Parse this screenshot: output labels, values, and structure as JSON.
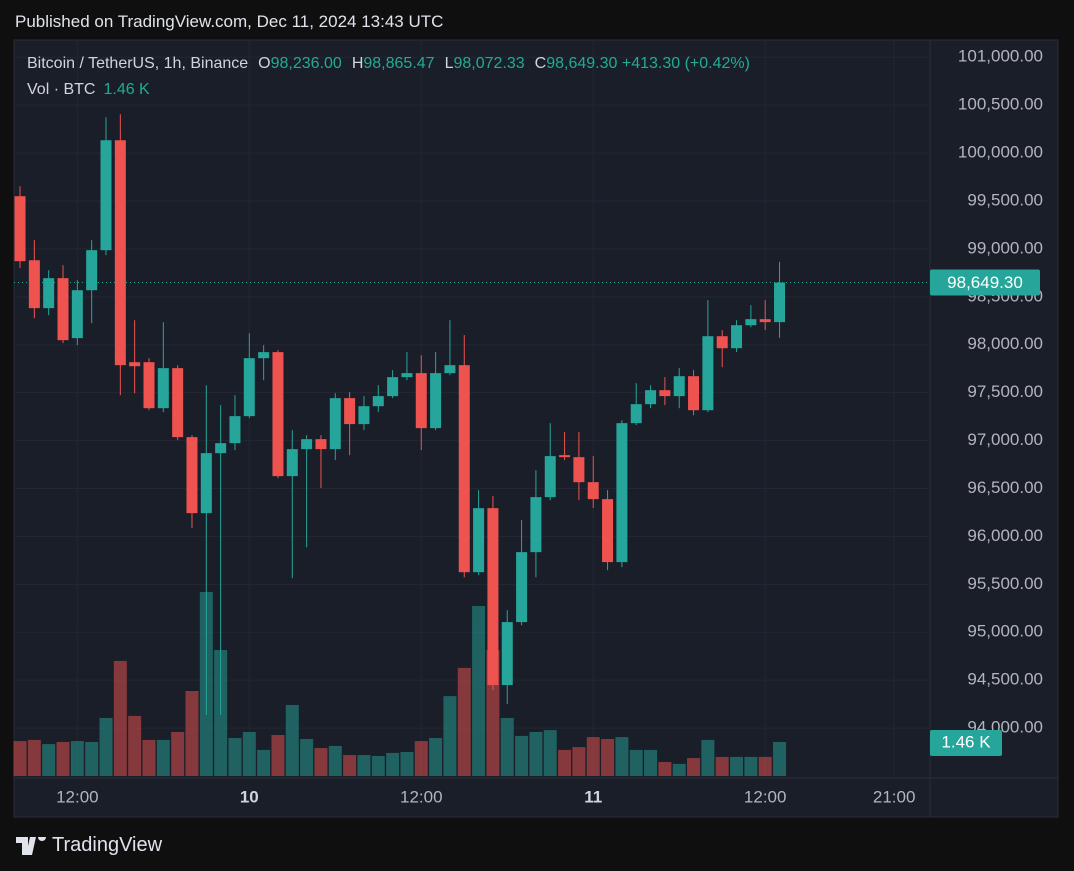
{
  "header": {
    "published": "Published on TradingView.com, Dec 11, 2024 13:43 UTC",
    "brand": "TradingView"
  },
  "chart_data": {
    "type": "candlestick",
    "title": "Bitcoin / TetherUS, 1h, Binance",
    "legend": [
      {
        "key": "O",
        "value": "98,236.00"
      },
      {
        "key": "H",
        "value": "98,865.47"
      },
      {
        "key": "L",
        "value": "98,072.33"
      },
      {
        "key": "C",
        "value": "98,649.30"
      }
    ],
    "change": "+413.30 (+0.42%)",
    "volume_title": "Vol · BTC",
    "volume_label": "1.46 K",
    "last_price_label": "98,649.30",
    "x": [
      0,
      1,
      2,
      3,
      4,
      5,
      6,
      7,
      8,
      9,
      10,
      11,
      12,
      13,
      14,
      15,
      16,
      17,
      18,
      19,
      20,
      21,
      22,
      23,
      24,
      25,
      26,
      27,
      28,
      29,
      30,
      31,
      32,
      33,
      34,
      35,
      36,
      37,
      38,
      39,
      40,
      41,
      42,
      43,
      44,
      45,
      46,
      47,
      48,
      49,
      50,
      51,
      52,
      53
    ],
    "open": [
      99550,
      98882,
      98382,
      98695,
      98069,
      98569,
      98987,
      100134,
      97818,
      97818,
      97338,
      97756,
      97036,
      96243,
      96869,
      96973,
      97255,
      97860,
      97923,
      96629,
      96911,
      97015,
      96911,
      97443,
      97172,
      97359,
      97464,
      97662,
      97704,
      97130,
      97704,
      97787,
      95627,
      96295,
      94449,
      95106,
      95836,
      96410,
      96848,
      96827,
      96566,
      96389,
      95732,
      97182,
      97380,
      97526,
      97464,
      97672,
      97317,
      98089,
      97964,
      98204,
      98267,
      98236
    ],
    "high": [
      99654,
      99091,
      98778,
      98830,
      98674,
      99091,
      100374,
      100405,
      98256,
      97860,
      98235,
      97787,
      97057,
      97578,
      97370,
      97474,
      98121,
      97996,
      97944,
      97109,
      97057,
      97057,
      97495,
      97505,
      97464,
      97578,
      97735,
      97923,
      97891,
      97923,
      98256,
      98100,
      96483,
      96420,
      95230,
      96170,
      96692,
      97182,
      97088,
      97088,
      96838,
      96483,
      97213,
      97599,
      97578,
      97662,
      97756,
      97735,
      98465,
      98152,
      98256,
      98413,
      98465,
      98865.47
    ],
    "low": [
      98799,
      98277,
      98308,
      98017,
      97995,
      98225,
      98935,
      97474,
      97495,
      97317,
      97296,
      97004,
      96086,
      94136,
      94136,
      96900,
      97234,
      97630,
      96608,
      95565,
      95888,
      96504,
      96796,
      96848,
      97109,
      97296,
      97443,
      97630,
      96900,
      97109,
      97683,
      95574,
      95596,
      94397,
      94250,
      95074,
      95574,
      96378,
      96796,
      96378,
      96295,
      95648,
      95679,
      97161,
      97338,
      97370,
      97338,
      97265,
      97296,
      97766,
      97923,
      98183,
      98152,
      98072.33
    ],
    "close": [
      98872,
      98382,
      98695,
      98048,
      98569,
      98987,
      100134,
      97787,
      97776,
      97338,
      97756,
      97036,
      96243,
      96869,
      96973,
      97255,
      97860,
      97923,
      96629,
      96911,
      97015,
      96911,
      97443,
      97172,
      97359,
      97464,
      97662,
      97704,
      97130,
      97704,
      97787,
      95627,
      96295,
      94449,
      95106,
      95836,
      96410,
      96838,
      96827,
      96566,
      96389,
      95732,
      97182,
      97380,
      97526,
      97464,
      97672,
      97317,
      98089,
      97964,
      98204,
      98267,
      98236,
      98649.3
    ],
    "volume": [
      1.5,
      1.55,
      1.37,
      1.46,
      1.5,
      1.46,
      2.49,
      4.94,
      2.58,
      1.55,
      1.55,
      1.89,
      3.65,
      7.9,
      5.41,
      1.63,
      1.89,
      1.12,
      1.76,
      3.05,
      1.59,
      1.2,
      1.29,
      0.9,
      0.9,
      0.86,
      0.99,
      1.03,
      1.5,
      1.63,
      3.43,
      4.64,
      7.3,
      5.41,
      2.49,
      1.72,
      1.89,
      1.97,
      1.12,
      1.24,
      1.67,
      1.59,
      1.67,
      1.12,
      1.12,
      0.6,
      0.52,
      0.77,
      1.55,
      0.82,
      0.82,
      0.82,
      0.82,
      1.46
    ],
    "up_color": "#26a69a",
    "down_color": "#ef5350",
    "xlim": [
      -0.42,
      63.5
    ],
    "xticks": [
      {
        "value": 4,
        "label": "12:00"
      },
      {
        "value": 16,
        "label": "10"
      },
      {
        "value": 28,
        "label": "12:00"
      },
      {
        "value": 40,
        "label": "11"
      },
      {
        "value": 52,
        "label": "12:00"
      },
      {
        "value": 61,
        "label": "21:00"
      }
    ],
    "ylim": [
      93500,
      101180
    ],
    "yticks": [
      {
        "value": 94000,
        "label": "94,000.00"
      },
      {
        "value": 94500,
        "label": "94,500.00"
      },
      {
        "value": 95000,
        "label": "95,000.00"
      },
      {
        "value": 95500,
        "label": "95,500.00"
      },
      {
        "value": 96000,
        "label": "96,000.00"
      },
      {
        "value": 96500,
        "label": "96,500.00"
      },
      {
        "value": 97000,
        "label": "97,000.00"
      },
      {
        "value": 97500,
        "label": "97,500.00"
      },
      {
        "value": 98000,
        "label": "98,000.00"
      },
      {
        "value": 98500,
        "label": "98,500.00"
      },
      {
        "value": 99000,
        "label": "99,000.00"
      },
      {
        "value": 99500,
        "label": "99,500.00"
      },
      {
        "value": 100000,
        "label": "100,000.00"
      },
      {
        "value": 100500,
        "label": "100,500.00"
      },
      {
        "value": 101000,
        "label": "101,000.00"
      }
    ],
    "grid": true
  }
}
